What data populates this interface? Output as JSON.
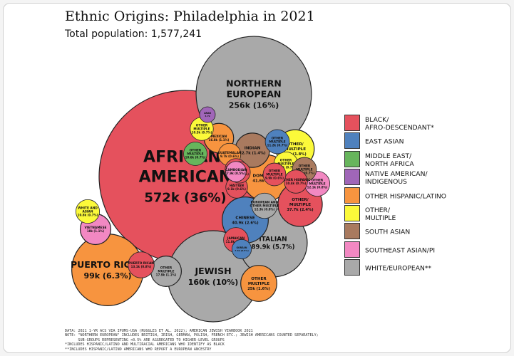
{
  "title": "Ethnic Origins: Philadelphia in 2021",
  "subtitle": "Total population: 1,577,241",
  "chart_data": {
    "type": "packed-bubble",
    "title": "Ethnic Origins: Philadelphia in 2021",
    "subtitle": "Total population: 1,577,241",
    "total": 1577241,
    "groups": [
      {
        "name": "BLACK/ AFRO-DESCENDANT*",
        "color": "#e5515d"
      },
      {
        "name": "EAST ASIAN",
        "color": "#4f81bd"
      },
      {
        "name": "MIDDLE EAST/ NORTH AFRICA",
        "color": "#67b55c"
      },
      {
        "name": "NATIVE AMERICAN/ INDIGENOUS",
        "color": "#a066b8"
      },
      {
        "name": "OTHER HISPANIC/LATINO",
        "color": "#f7943f"
      },
      {
        "name": "OTHER/ MULTIPLE",
        "color": "#fbf93a"
      },
      {
        "name": "SOUTH ASIAN",
        "color": "#a97a5f"
      },
      {
        "name": "SOUTHEAST ASIAN/PI",
        "color": "#f288c2"
      },
      {
        "name": "WHITE/EUROPEAN**",
        "color": "#a9a9a9"
      }
    ],
    "bubbles": [
      {
        "label": "AFRICAN-\nAMERICAN",
        "value_text": "572k (36%)",
        "value": 572000,
        "share": 36,
        "group": "BLACK/ AFRO-DESCENDANT*"
      },
      {
        "label": "NORTHERN\nEUROPEAN",
        "value_text": "256k (16%)",
        "value": 256000,
        "share": 16,
        "group": "WHITE/EUROPEAN**"
      },
      {
        "label": "JEWISH",
        "value_text": "160k (10%)",
        "value": 160000,
        "share": 10,
        "group": "WHITE/EUROPEAN**"
      },
      {
        "label": "PUERTO RICAN",
        "value_text": "99k (6.3%)",
        "value": 99000,
        "share": 6.3,
        "group": "OTHER HISPANIC/LATINO"
      },
      {
        "label": "ITALIAN",
        "value_text": "89.9k (5.7%)",
        "value": 89900,
        "share": 5.7,
        "group": "WHITE/EUROPEAN**"
      },
      {
        "label": "DOMINICAN",
        "value_text": "41.6k (2.6%)",
        "value": 41600,
        "share": 2.6,
        "group": "OTHER HISPANIC/LATINO"
      },
      {
        "label": "CHINESE",
        "value_text": "40.9k (2.6%)",
        "value": 40900,
        "share": 2.6,
        "group": "EAST ASIAN"
      },
      {
        "label": "OTHER/\nMULTIPLE",
        "value_text": "37.7k (2.4%)",
        "value": 37700,
        "share": 2.4,
        "group": "BLACK/ AFRO-DESCENDANT*"
      },
      {
        "label": "OTHER/\nMULTIPLE",
        "value_text": "28k (1.8%)",
        "value": 28000,
        "share": 1.8,
        "group": "OTHER/ MULTIPLE"
      },
      {
        "label": "OTHER\nMULTIPLE",
        "value_text": "25k (1.6%)",
        "value": 25000,
        "share": 1.6,
        "group": "OTHER HISPANIC/LATINO"
      },
      {
        "label": "INDIAN",
        "value_text": "22.7k (1.4%)",
        "value": 22700,
        "share": 1.4,
        "group": "SOUTH ASIAN"
      },
      {
        "label": "MEXICAN",
        "value_text": "16.8k (1.1%)",
        "value": 16800,
        "share": 1.1,
        "group": "OTHER HISPANIC/LATINO"
      },
      {
        "label": "VIETNAMESE",
        "value_text": "18k (1.1%)",
        "value": 18000,
        "share": 1.1,
        "group": "SOUTHEAST ASIAN/PI"
      },
      {
        "label": "OTHER\nMULTIPLE",
        "value_text": "17.9k (1.1%)",
        "value": 17900,
        "share": 1.1,
        "group": "WHITE/EUROPEAN**"
      },
      {
        "label": "PUERTO RICAN",
        "value_text": "13.1k (0.8%)",
        "value": 13100,
        "share": 0.8,
        "group": "BLACK/ AFRO-DESCENDANT*"
      },
      {
        "label": "OTHER\nMULTIPLE",
        "value_text": "12.1k (0.8%)",
        "value": 12100,
        "share": 0.8,
        "group": "SOUTHEAST ASIAN/PI"
      },
      {
        "label": "EUROPEAN AND\nOTHER MULTIPLE",
        "value_text": "12.3k (0.8%)",
        "value": 12300,
        "share": 0.8,
        "group": "WHITE/EUROPEAN**"
      },
      {
        "label": "WHITE AND\nASIAN",
        "value_text": "10.8k (0.7%)",
        "value": 10800,
        "share": 0.7,
        "group": "OTHER/ MULTIPLE"
      },
      {
        "label": "OTHER\nMULTIPLE",
        "value_text": "10.8k (0.7%)",
        "value": 10800,
        "share": 0.7,
        "group": "OTHER/ MULTIPLE"
      },
      {
        "label": "JAMAICAN",
        "value_text": "11.8k (0.7%)",
        "value": 11800,
        "share": 0.7,
        "group": "BLACK/ AFRO-DESCENDANT*"
      },
      {
        "label": "OTHER\nMULTIPLE",
        "value_text": "10.3k (0.7%)",
        "value": 10300,
        "share": 0.7,
        "group": "OTHER/ MULTIPLE"
      },
      {
        "label": "OTHER\nMULTIPLE",
        "value_text": "11.2k (0.7%)",
        "value": 11200,
        "share": 0.7,
        "group": "EAST ASIAN"
      },
      {
        "label": "OTHER\nMULTIPLE",
        "value_text": "10.6k (0.7%)",
        "value": 10600,
        "share": 0.7,
        "group": "MIDDLE EAST/ NORTH AFRICA"
      },
      {
        "label": "OTHER\nMULTIPLE",
        "value_text": "11.2k (0.7%)",
        "value": 11200,
        "share": 0.7,
        "group": "SOUTH ASIAN"
      },
      {
        "label": "GUATEMALAN",
        "value_text": "9.7k (0.6%)",
        "value": 9700,
        "share": 0.6,
        "group": "OTHER HISPANIC/LATINO"
      },
      {
        "label": "OTHER HISPANIC",
        "value_text": "10.4k (0.7%)",
        "value": 10400,
        "share": 0.7,
        "group": "BLACK/ AFRO-DESCENDANT*"
      },
      {
        "label": "OTHER\nMULTIPLE",
        "value_text": "9.9k (0.6%)",
        "value": 9900,
        "share": 0.6,
        "group": "BLACK/ AFRO-DESCENDANT*"
      },
      {
        "label": "HAITIAN",
        "value_text": "9.1k (0.6%)",
        "value": 9100,
        "share": 0.6,
        "group": "BLACK/ AFRO-DESCENDANT*"
      },
      {
        "label": "DOMINICAN",
        "value_text": "9.1k (0.6%)",
        "value": 9100,
        "share": 0.6,
        "group": "BLACK/ AFRO-DESCENDANT*"
      },
      {
        "label": "AFRICAN",
        "value_text": "8.9k (0.6%)",
        "value": 8900,
        "share": 0.6,
        "group": "BLACK/ AFRO-DESCENDANT*"
      },
      {
        "label": "KOREAN",
        "value_text": "7.3k (0.5%)",
        "value": 7300,
        "share": 0.5,
        "group": "EAST ASIAN"
      },
      {
        "label": "CAMBODIAN",
        "value_text": "7.9k (0.5%)",
        "value": 7900,
        "share": 0.5,
        "group": "SOUTHEAST ASIAN/PI"
      },
      {
        "label": "ARAB",
        "value_text": "4.7k",
        "value": 4700,
        "share": 0.3,
        "group": "NATIVE AMERICAN/ INDIGENOUS"
      }
    ]
  },
  "notes": [
    "DATA: 2021 1-YR ACS VIA IPUMS-USA (RUGGLES ET AL. 2022); AMERICAN JEWISH YEARBOOK 2021",
    "NOTE: \"NORTHERN EUROPEAN\" INCLUDES BRITISH, IRISH, GERMAN, POLISH, FRENCH ETC.; JEWISH AMERICANS COUNTED SEPARATELY;",
    "      SUB-GROUPS REPRESENTING <0.5% ARE AGGREGATED TO HIGHER-LEVEL GROUPS",
    "*INCLUDES HISPANIC/LATINO AND MULTIRACIAL AMERICANS WHO IDENTIFY AS BLACK",
    "**INCLUDES HISPANIC/LATINO AMERICANS WHO REPORT A EUROPEAN ANCESTRY"
  ]
}
